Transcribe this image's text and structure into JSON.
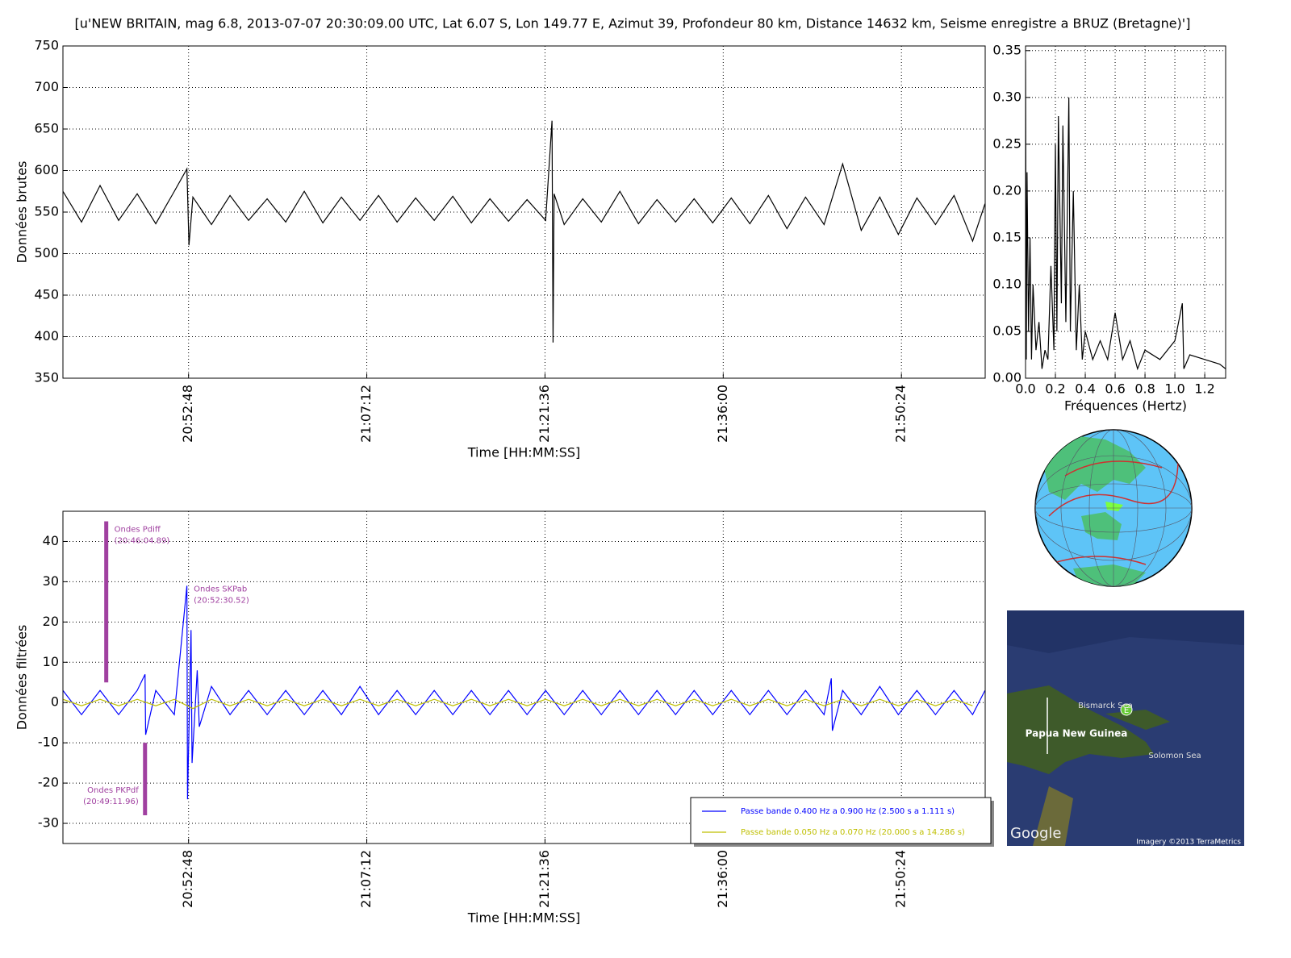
{
  "title": "[u'NEW BRITAIN, mag 6.8, 2013-07-07 20:30:09.00 UTC, Lat 6.07 S, Lon 149.77 E, Azimut 39, Profondeur 80 km, Distance 14632 km, Seisme enregistre a BRUZ (Bretagne)']",
  "chart_data": [
    {
      "type": "line",
      "xlabel": "Time [HH:MM:SS]",
      "ylabel": "Données brutes",
      "grid": true,
      "xlim": [
        "20:42:39",
        "21:57:10"
      ],
      "xticks": [
        "20:52:48",
        "21:07:12",
        "21:21:36",
        "21:36:00",
        "21:50:24"
      ],
      "ylim": [
        350,
        750
      ],
      "yticks": [
        350,
        400,
        450,
        500,
        550,
        600,
        650,
        700,
        750
      ],
      "series": [
        {
          "color": "#000000",
          "x": [
            "20:42:39",
            "20:44:09",
            "20:45:39",
            "20:47:09",
            "20:48:39",
            "20:50:09",
            "20:51:39",
            "20:52:40",
            "20:52:50",
            "20:53:09",
            "20:54:39",
            "20:56:09",
            "20:57:39",
            "20:59:09",
            "21:00:39",
            "21:02:09",
            "21:03:39",
            "21:05:09",
            "21:06:39",
            "21:08:09",
            "21:09:39",
            "21:11:09",
            "21:12:39",
            "21:14:09",
            "21:15:39",
            "21:17:09",
            "21:18:39",
            "21:20:09",
            "21:21:39",
            "21:22:10",
            "21:22:15",
            "21:22:20",
            "21:23:09",
            "21:24:39",
            "21:26:09",
            "21:27:39",
            "21:29:09",
            "21:30:39",
            "21:32:09",
            "21:33:39",
            "21:35:09",
            "21:36:39",
            "21:38:09",
            "21:39:39",
            "21:41:09",
            "21:42:39",
            "21:44:09",
            "21:45:39",
            "21:47:09",
            "21:48:39",
            "21:50:09",
            "21:51:39",
            "21:53:09",
            "21:54:39",
            "21:56:09",
            "21:57:09"
          ],
          "values": [
            575,
            538,
            582,
            540,
            572,
            536,
            575,
            602,
            510,
            568,
            535,
            570,
            540,
            566,
            538,
            575,
            537,
            568,
            540,
            570,
            538,
            567,
            540,
            569,
            537,
            566,
            539,
            565,
            540,
            660,
            393,
            572,
            535,
            566,
            538,
            575,
            536,
            565,
            538,
            566,
            537,
            567,
            536,
            570,
            530,
            568,
            535,
            608,
            528,
            568,
            523,
            567,
            535,
            570,
            515,
            560
          ]
        }
      ]
    },
    {
      "type": "line",
      "xlabel": "Fréquences (Hertz)",
      "grid": true,
      "xlim": [
        0,
        1.34
      ],
      "xticks": [
        {
          "value": 0,
          "label": "0.0"
        },
        {
          "value": 0.2,
          "label": "0.2"
        },
        {
          "value": 0.4,
          "label": "0.4"
        },
        {
          "value": 0.6,
          "label": "0.6"
        },
        {
          "value": 0.8,
          "label": "0.8"
        },
        {
          "value": 1,
          "label": "1.0"
        },
        {
          "value": 1.2,
          "label": "1.2"
        }
      ],
      "ylim": [
        0,
        0.355
      ],
      "yticks": [
        {
          "value": 0,
          "label": "0.00"
        },
        {
          "value": 0.05,
          "label": "0.05"
        },
        {
          "value": 0.1,
          "label": "0.10"
        },
        {
          "value": 0.15,
          "label": "0.15"
        },
        {
          "value": 0.2,
          "label": "0.20"
        },
        {
          "value": 0.25,
          "label": "0.25"
        },
        {
          "value": 0.3,
          "label": "0.30"
        },
        {
          "value": 0.35,
          "label": "0.35"
        }
      ],
      "series": [
        {
          "color": "#000000",
          "x": [
            0,
            0.005,
            0.01,
            0.02,
            0.03,
            0.04,
            0.05,
            0.07,
            0.09,
            0.11,
            0.13,
            0.15,
            0.17,
            0.19,
            0.2,
            0.21,
            0.22,
            0.24,
            0.25,
            0.27,
            0.29,
            0.3,
            0.32,
            0.34,
            0.36,
            0.38,
            0.4,
            0.45,
            0.5,
            0.55,
            0.6,
            0.65,
            0.7,
            0.75,
            0.8,
            0.9,
            1,
            1.05,
            1.06,
            1.1,
            1.2,
            1.3,
            1.34
          ],
          "values": [
            0.34,
            0.02,
            0.22,
            0.05,
            0.15,
            0.02,
            0.1,
            0.03,
            0.06,
            0.01,
            0.03,
            0.02,
            0.12,
            0.03,
            0.25,
            0.05,
            0.28,
            0.08,
            0.27,
            0.06,
            0.3,
            0.05,
            0.2,
            0.03,
            0.1,
            0.02,
            0.05,
            0.02,
            0.04,
            0.02,
            0.07,
            0.02,
            0.04,
            0.01,
            0.03,
            0.02,
            0.04,
            0.08,
            0.01,
            0.025,
            0.02,
            0.015,
            0.01
          ]
        }
      ]
    },
    {
      "type": "line",
      "xlabel": "Time [HH:MM:SS]",
      "ylabel": "Données filtrées",
      "grid": true,
      "legend": "lower right",
      "xlim": [
        "20:42:39",
        "21:57:10"
      ],
      "xticks": [
        "20:52:48",
        "21:07:12",
        "21:21:36",
        "21:36:00",
        "21:50:24"
      ],
      "ylim": [
        -35,
        47.5
      ],
      "yticks": [
        -30,
        -20,
        -10,
        0,
        10,
        20,
        30,
        40
      ],
      "series": [
        {
          "name": "Passe bande 0.400 Hz a 0.900 Hz (2.500 s a 1.111 s)",
          "color": "#0000ff",
          "x": [
            "20:42:39",
            "20:44:09",
            "20:45:39",
            "20:47:09",
            "20:48:39",
            "20:49:17",
            "20:49:20",
            "20:50:09",
            "20:51:39",
            "20:52:40",
            "20:52:43",
            "20:53:00",
            "20:53:05",
            "20:53:30",
            "20:53:40",
            "20:54:39",
            "20:56:09",
            "20:57:39",
            "20:59:09",
            "21:00:39",
            "21:02:09",
            "21:03:39",
            "21:05:09",
            "21:06:39",
            "21:08:09",
            "21:09:39",
            "21:11:09",
            "21:12:39",
            "21:14:09",
            "21:15:39",
            "21:17:09",
            "21:18:39",
            "21:20:09",
            "21:21:39",
            "21:23:09",
            "21:24:39",
            "21:26:09",
            "21:27:39",
            "21:29:09",
            "21:30:39",
            "21:32:09",
            "21:33:39",
            "21:35:09",
            "21:36:39",
            "21:38:09",
            "21:39:39",
            "21:41:09",
            "21:42:39",
            "21:44:09",
            "21:44:44",
            "21:44:49",
            "21:45:39",
            "21:47:09",
            "21:48:39",
            "21:50:09",
            "21:51:39",
            "21:53:09",
            "21:54:39",
            "21:56:09",
            "21:57:09"
          ],
          "values": [
            3,
            -3,
            3,
            -3,
            3,
            7,
            -8,
            3,
            -3,
            29,
            -24,
            18,
            -15,
            8,
            -6,
            4,
            -3,
            3,
            -3,
            3,
            -3,
            3,
            -3,
            4,
            -3,
            3,
            -3,
            3,
            -3,
            3,
            -3,
            3,
            -3,
            3,
            -3,
            3,
            -3,
            3,
            -3,
            3,
            -3,
            3,
            -3,
            3,
            -3,
            3,
            -3,
            3,
            -3,
            6,
            -7,
            3,
            -3,
            4,
            -3,
            3,
            -3,
            3,
            -3,
            3
          ]
        },
        {
          "name": "Passe bande 0.050 Hz a 0.070 Hz (20.000 s a 14.286 s)",
          "color": "#bfbf00",
          "x": [
            "20:42:39",
            "20:44:09",
            "20:45:39",
            "20:47:09",
            "20:48:39",
            "20:50:09",
            "20:51:39",
            "20:53:09",
            "20:54:39",
            "20:56:09",
            "20:57:39",
            "20:59:09",
            "21:00:39",
            "21:02:09",
            "21:03:39",
            "21:05:09",
            "21:06:39",
            "21:08:09",
            "21:09:39",
            "21:11:09",
            "21:12:39",
            "21:14:09",
            "21:15:39",
            "21:17:09",
            "21:18:39",
            "21:20:09",
            "21:21:39",
            "21:23:09",
            "21:24:39",
            "21:26:09",
            "21:27:39",
            "21:29:09",
            "21:30:39",
            "21:32:09",
            "21:33:39",
            "21:35:09",
            "21:36:39",
            "21:38:09",
            "21:39:39",
            "21:41:09",
            "21:42:39",
            "21:44:09",
            "21:45:39",
            "21:47:09",
            "21:48:39",
            "21:50:09",
            "21:51:39",
            "21:53:09",
            "21:54:39",
            "21:56:09"
          ],
          "values": [
            0.8,
            -0.8,
            0.8,
            -0.8,
            0.8,
            -0.8,
            0.8,
            -1.5,
            0.8,
            -0.8,
            0.8,
            -0.8,
            0.8,
            -0.8,
            0.8,
            -0.8,
            0.8,
            -0.8,
            0.8,
            -0.8,
            0.8,
            -0.8,
            0.8,
            -0.8,
            0.8,
            -0.8,
            0.8,
            -0.8,
            0.8,
            -0.8,
            0.8,
            -0.8,
            0.8,
            -0.8,
            0.8,
            -0.8,
            0.8,
            -0.8,
            0.8,
            -0.8,
            0.8,
            -0.8,
            0.8,
            -0.8,
            0.8,
            -0.8,
            0.8,
            -0.8,
            0.8,
            -0.8
          ]
        }
      ],
      "markers": [
        {
          "label": "Ondes Pdiff",
          "time": "(20:46:04.89)",
          "x": "20:46:09",
          "ylow": 5,
          "yhigh": 45
        },
        {
          "label": "Ondes SKPab",
          "time": "(20:52:30.52)",
          "x": "20:52:42",
          "y": 29
        },
        {
          "label": "Ondes PKPdf",
          "time": "(20:49:11.96)",
          "x": "20:49:17",
          "ylow": -28,
          "yhigh": -10
        }
      ]
    }
  ],
  "map": {
    "labels": [
      "Bismarck Sea",
      "Papua New Guinea",
      "Solomon Sea"
    ],
    "logo": "Google",
    "credit": "Imagery ©2013 TerraMetrics",
    "pin": "E"
  }
}
